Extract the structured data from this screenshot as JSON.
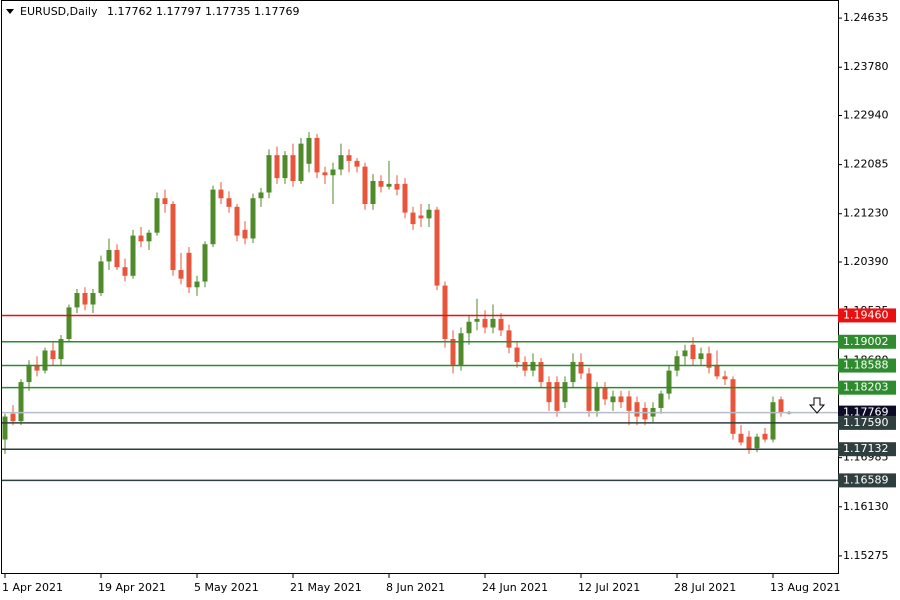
{
  "chart_data": {
    "type": "candlestick",
    "symbol": "EURUSD,Daily",
    "up_color": "#4f8a2b",
    "down_color": "#e8553a",
    "categories": [
      "1 Apr 2021",
      null,
      null,
      null,
      null,
      null,
      null,
      null,
      null,
      null,
      null,
      null,
      "19 Apr 2021",
      null,
      null,
      null,
      null,
      null,
      null,
      null,
      null,
      null,
      null,
      null,
      "5 May 2021",
      null,
      null,
      null,
      null,
      null,
      null,
      null,
      null,
      null,
      null,
      null,
      "21 May 2021",
      null,
      null,
      null,
      null,
      null,
      null,
      null,
      null,
      null,
      null,
      null,
      "8 Jun 2021",
      null,
      null,
      null,
      null,
      null,
      null,
      null,
      null,
      null,
      null,
      null,
      "24 Jun 2021",
      null,
      null,
      null,
      null,
      null,
      null,
      null,
      null,
      null,
      null,
      null,
      "12 Jul 2021",
      null,
      null,
      null,
      null,
      null,
      null,
      null,
      null,
      null,
      null,
      null,
      "28 Jul 2021",
      null,
      null,
      null,
      null,
      null,
      null,
      null,
      null,
      null,
      null,
      null,
      "13 Aug 2021",
      null,
      null
    ],
    "ohlc": [
      [
        1.173,
        1.1775,
        1.1705,
        1.177
      ],
      [
        1.1775,
        1.179,
        1.1755,
        1.1762
      ],
      [
        1.1762,
        1.1835,
        1.1755,
        1.183
      ],
      [
        1.183,
        1.1868,
        1.1815,
        1.186
      ],
      [
        1.186,
        1.1875,
        1.184,
        1.185
      ],
      [
        1.185,
        1.189,
        1.1845,
        1.1885
      ],
      [
        1.1885,
        1.19,
        1.186,
        1.187
      ],
      [
        1.187,
        1.1912,
        1.186,
        1.1905
      ],
      [
        1.1905,
        1.1965,
        1.19,
        1.196
      ],
      [
        1.196,
        1.1992,
        1.195,
        1.1985
      ],
      [
        1.1985,
        1.1995,
        1.1955,
        1.1965
      ],
      [
        1.1965,
        1.1992,
        1.195,
        1.1985
      ],
      [
        1.1985,
        1.205,
        1.198,
        1.204
      ],
      [
        1.204,
        1.208,
        1.2025,
        1.206
      ],
      [
        1.206,
        1.207,
        1.2025,
        1.203
      ],
      [
        1.203,
        1.2045,
        1.2005,
        1.2015
      ],
      [
        1.2015,
        1.2095,
        1.201,
        1.2085
      ],
      [
        1.2085,
        1.21,
        1.2065,
        1.2075
      ],
      [
        1.2075,
        1.2095,
        1.206,
        1.209
      ],
      [
        1.209,
        1.216,
        1.2085,
        1.215
      ],
      [
        1.215,
        1.2165,
        1.2125,
        1.214
      ],
      [
        1.214,
        1.2145,
        1.2015,
        1.2025
      ],
      [
        1.2025,
        1.2055,
        1.2,
        1.201
      ],
      [
        1.2055,
        1.2065,
        1.1985,
        1.1995
      ],
      [
        1.1995,
        1.2015,
        1.198,
        1.2005
      ],
      [
        1.2005,
        1.2075,
        1.1995,
        1.207
      ],
      [
        1.207,
        1.2172,
        1.2065,
        1.2165
      ],
      [
        1.2165,
        1.2178,
        1.214,
        1.215
      ],
      [
        1.215,
        1.2162,
        1.2125,
        1.2135
      ],
      [
        1.2135,
        1.214,
        1.2075,
        1.2085
      ],
      [
        1.2095,
        1.211,
        1.207,
        1.208
      ],
      [
        1.208,
        1.2158,
        1.2072,
        1.215
      ],
      [
        1.215,
        1.2168,
        1.2135,
        1.216
      ],
      [
        1.216,
        1.2235,
        1.215,
        1.2225
      ],
      [
        1.2225,
        1.224,
        1.2175,
        1.2185
      ],
      [
        1.2185,
        1.2232,
        1.2175,
        1.2225
      ],
      [
        1.2225,
        1.2245,
        1.217,
        1.218
      ],
      [
        1.218,
        1.2255,
        1.2175,
        1.2245
      ],
      [
        1.221,
        1.2265,
        1.2195,
        1.2255
      ],
      [
        1.2255,
        1.2262,
        1.2185,
        1.2195
      ],
      [
        1.2195,
        1.2205,
        1.2175,
        1.219
      ],
      [
        1.219,
        1.2212,
        1.214,
        1.22
      ],
      [
        1.22,
        1.2245,
        1.219,
        1.2225
      ],
      [
        1.2225,
        1.2235,
        1.2195,
        1.2215
      ],
      [
        1.2215,
        1.222,
        1.2195,
        1.2205
      ],
      [
        1.2205,
        1.2212,
        1.213,
        1.214
      ],
      [
        1.214,
        1.2192,
        1.213,
        1.218
      ],
      [
        1.218,
        1.219,
        1.216,
        1.217
      ],
      [
        1.217,
        1.2215,
        1.2165,
        1.2175
      ],
      [
        1.2175,
        1.219,
        1.2155,
        1.2165
      ],
      [
        1.2175,
        1.2185,
        1.2115,
        1.2125
      ],
      [
        1.2125,
        1.2135,
        1.2095,
        1.2105
      ],
      [
        1.212,
        1.214,
        1.21,
        1.2115
      ],
      [
        1.2115,
        1.214,
        1.21,
        1.213
      ],
      [
        1.213,
        1.2135,
        1.199,
        1.1998
      ],
      [
        1.1998,
        1.2005,
        1.189,
        1.1905
      ],
      [
        1.1905,
        1.192,
        1.1845,
        1.186
      ],
      [
        1.186,
        1.1925,
        1.185,
        1.1915
      ],
      [
        1.1915,
        1.1945,
        1.1895,
        1.1935
      ],
      [
        1.1935,
        1.1975,
        1.192,
        1.194
      ],
      [
        1.194,
        1.1955,
        1.1915,
        1.1925
      ],
      [
        1.1925,
        1.1965,
        1.1915,
        1.194
      ],
      [
        1.194,
        1.195,
        1.191,
        1.192
      ],
      [
        1.192,
        1.193,
        1.188,
        1.189
      ],
      [
        1.189,
        1.19,
        1.1855,
        1.1865
      ],
      [
        1.1865,
        1.1875,
        1.184,
        1.185
      ],
      [
        1.185,
        1.188,
        1.184,
        1.1865
      ],
      [
        1.1865,
        1.1872,
        1.182,
        1.183
      ],
      [
        1.183,
        1.184,
        1.178,
        1.1795
      ],
      [
        1.183,
        1.184,
        1.177,
        1.178
      ],
      [
        1.1795,
        1.184,
        1.1785,
        1.183
      ],
      [
        1.183,
        1.188,
        1.182,
        1.1865
      ],
      [
        1.1865,
        1.188,
        1.1835,
        1.1845
      ],
      [
        1.1845,
        1.1855,
        1.177,
        1.178
      ],
      [
        1.178,
        1.183,
        1.177,
        1.182
      ],
      [
        1.182,
        1.183,
        1.179,
        1.18
      ],
      [
        1.1795,
        1.1815,
        1.178,
        1.1805
      ],
      [
        1.1805,
        1.1815,
        1.1785,
        1.1795
      ],
      [
        1.1805,
        1.1815,
        1.1755,
        1.178
      ],
      [
        1.1795,
        1.1805,
        1.1755,
        1.177
      ],
      [
        1.1785,
        1.1795,
        1.1755,
        1.1765
      ],
      [
        1.177,
        1.1795,
        1.176,
        1.1785
      ],
      [
        1.1785,
        1.1815,
        1.1775,
        1.181
      ],
      [
        1.181,
        1.186,
        1.18,
        1.185
      ],
      [
        1.185,
        1.1885,
        1.184,
        1.1875
      ],
      [
        1.1875,
        1.1895,
        1.186,
        1.1885
      ],
      [
        1.1895,
        1.1908,
        1.186,
        1.187
      ],
      [
        1.187,
        1.189,
        1.186,
        1.188
      ],
      [
        1.188,
        1.1892,
        1.1845,
        1.1855
      ],
      [
        1.186,
        1.1885,
        1.1835,
        1.184
      ],
      [
        1.184,
        1.185,
        1.1825,
        1.1835
      ],
      [
        1.1835,
        1.184,
        1.173,
        1.174
      ],
      [
        1.174,
        1.1755,
        1.172,
        1.1725
      ],
      [
        1.1735,
        1.1745,
        1.1705,
        1.1712
      ],
      [
        1.1715,
        1.174,
        1.1708,
        1.1735
      ],
      [
        1.174,
        1.175,
        1.1725,
        1.173
      ],
      [
        1.173,
        1.1805,
        1.1725,
        1.1795
      ],
      [
        1.18,
        1.1805,
        1.177,
        1.1776
      ],
      [
        1.17762,
        1.17797,
        1.17735,
        1.17769
      ]
    ],
    "ylim": [
      1.1496,
      1.2495
    ],
    "yticks": [
      1.24635,
      {
        "value": 1.2378,
        "label": "1.23780"
      },
      {
        "value": 1.2294,
        "label": "1.22940"
      },
      1.22085,
      {
        "value": 1.2123,
        "label": "1.21230"
      },
      {
        "value": 1.2039,
        "label": "1.20390"
      },
      1.19535,
      {
        "value": 1.1868,
        "label": "1.18680"
      },
      1.16985,
      {
        "value": 1.1613,
        "label": "1.16130"
      },
      1.15275
    ],
    "levels": [
      {
        "value": 1.1946,
        "label": "1.19460",
        "color": "#e81010",
        "line_color": "#e81010"
      },
      {
        "value": 1.19002,
        "label": "1.19002",
        "color": "#2e8b2e",
        "line_color": "#2e8b2e"
      },
      {
        "value": 1.18588,
        "label": "1.18588",
        "color": "#2e8b2e",
        "line_color": "#2e8b2e"
      },
      {
        "value": 1.18203,
        "label": "1.18203",
        "color": "#2e8b2e",
        "line_color": "#2e8b2e"
      },
      {
        "value": 1.17769,
        "label": "1.17769",
        "color": "#0c0c28",
        "line_color": "#b8bcc8"
      },
      {
        "value": 1.1759,
        "label": "1.17590",
        "color": "#2f3f3f",
        "line_color": "#2f3f3f"
      },
      {
        "value": 1.17132,
        "label": "1.17132",
        "color": "#2f3f3f",
        "line_color": "#2f3f3f"
      },
      {
        "value": 1.16589,
        "label": "1.16589",
        "color": "#2f3f3f",
        "line_color": "#2f3f3f"
      }
    ]
  }
}
